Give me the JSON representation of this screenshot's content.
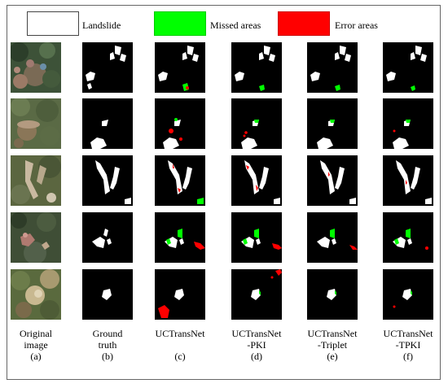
{
  "legend": [
    {
      "label": "Landslide",
      "color": "#ffffff"
    },
    {
      "label": "Missed areas",
      "color": "#00ff00"
    },
    {
      "label": "Error areas",
      "color": "#ff0000"
    }
  ],
  "columns": [
    {
      "line1": "Original",
      "line2": "image",
      "letter": "(a)"
    },
    {
      "line1": "Ground",
      "line2": "truth",
      "letter": "(b)"
    },
    {
      "line1": "UCTransNet",
      "line2": "",
      "letter": "(c)"
    },
    {
      "line1": "UCTransNet",
      "line2": "-PKI",
      "letter": "(d)"
    },
    {
      "line1": "UCTransNet",
      "line2": "-Triplet",
      "letter": "(e)"
    },
    {
      "line1": "UCTransNet",
      "line2": "-TPKI",
      "letter": "(f)"
    }
  ]
}
